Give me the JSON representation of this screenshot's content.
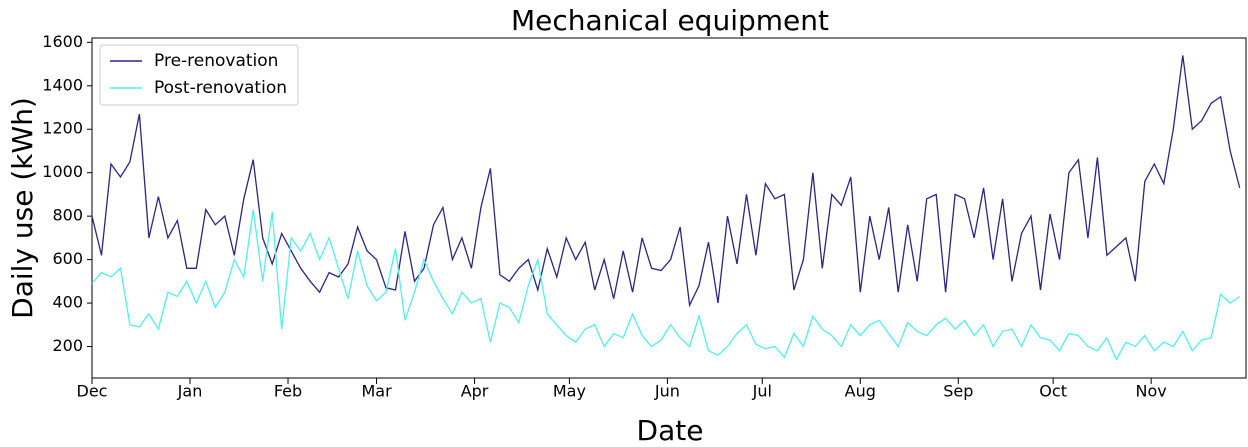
{
  "chart_data": {
    "type": "line",
    "title": "Mechanical equipment",
    "x_label": "Date",
    "y_label": "Daily use (kWh)",
    "x": [
      0,
      3,
      6,
      9,
      12,
      15,
      18,
      21,
      24,
      27,
      30,
      33,
      36,
      39,
      42,
      45,
      48,
      51,
      54,
      57,
      60,
      63,
      66,
      69,
      72,
      75,
      78,
      81,
      84,
      87,
      90,
      93,
      96,
      99,
      102,
      105,
      108,
      111,
      114,
      117,
      120,
      123,
      126,
      129,
      132,
      135,
      138,
      141,
      144,
      147,
      150,
      153,
      156,
      159,
      162,
      165,
      168,
      171,
      174,
      177,
      180,
      183,
      186,
      189,
      192,
      195,
      198,
      201,
      204,
      207,
      210,
      213,
      216,
      219,
      222,
      225,
      228,
      231,
      234,
      237,
      240,
      243,
      246,
      249,
      252,
      255,
      258,
      261,
      264,
      267,
      270,
      273,
      276,
      279,
      282,
      285,
      288,
      291,
      294,
      297,
      300,
      303,
      306,
      309,
      312,
      315,
      318,
      321,
      324,
      327,
      330,
      333,
      336,
      339,
      342,
      345,
      348,
      351,
      354,
      357,
      360,
      363
    ],
    "xlim": [
      0,
      365
    ],
    "xticks": [
      {
        "value": 0,
        "label": "Dec"
      },
      {
        "value": 31,
        "label": "Jan"
      },
      {
        "value": 62,
        "label": "Feb"
      },
      {
        "value": 90,
        "label": "Mar"
      },
      {
        "value": 121,
        "label": "Apr"
      },
      {
        "value": 151,
        "label": "May"
      },
      {
        "value": 182,
        "label": "Jun"
      },
      {
        "value": 212,
        "label": "Jul"
      },
      {
        "value": 243,
        "label": "Aug"
      },
      {
        "value": 274,
        "label": "Sep"
      },
      {
        "value": 304,
        "label": "Oct"
      },
      {
        "value": 335,
        "label": "Nov"
      }
    ],
    "ylim": [
      55,
      1620
    ],
    "yticks": [
      200,
      400,
      600,
      800,
      1000,
      1200,
      1400,
      1600
    ],
    "legend": "upper left",
    "series": [
      {
        "name": "Pre-renovation",
        "color": "#2b2585",
        "values": [
          800,
          620,
          1040,
          980,
          1050,
          1270,
          700,
          890,
          700,
          780,
          560,
          560,
          830,
          760,
          800,
          620,
          880,
          1060,
          700,
          580,
          720,
          640,
          560,
          500,
          450,
          540,
          520,
          580,
          750,
          640,
          600,
          470,
          460,
          730,
          500,
          560,
          760,
          840,
          600,
          700,
          560,
          840,
          1020,
          530,
          500,
          560,
          600,
          460,
          650,
          520,
          700,
          600,
          680,
          460,
          600,
          420,
          640,
          450,
          700,
          560,
          550,
          600,
          750,
          390,
          480,
          680,
          400,
          800,
          580,
          900,
          620,
          950,
          880,
          900,
          460,
          600,
          1000,
          560,
          900,
          850,
          980,
          450,
          800,
          600,
          840,
          450,
          760,
          500,
          880,
          900,
          450,
          900,
          880,
          700,
          930,
          600,
          880,
          500,
          720,
          800,
          460,
          810,
          600,
          1000,
          1060,
          700,
          1070,
          620,
          660,
          700,
          500,
          960,
          1040,
          950,
          1200,
          1540,
          1200,
          1240,
          1320,
          1350,
          1100,
          930
        ]
      },
      {
        "name": "Post-renovation",
        "color": "#4ff0ee",
        "values": [
          490,
          540,
          520,
          560,
          300,
          290,
          350,
          280,
          450,
          430,
          500,
          400,
          500,
          380,
          450,
          600,
          520,
          830,
          500,
          820,
          280,
          700,
          640,
          720,
          600,
          700,
          560,
          420,
          640,
          480,
          410,
          450,
          650,
          320,
          450,
          600,
          500,
          420,
          350,
          450,
          400,
          420,
          220,
          400,
          380,
          310,
          480,
          600,
          350,
          300,
          250,
          220,
          280,
          300,
          200,
          260,
          240,
          350,
          250,
          200,
          230,
          300,
          240,
          200,
          340,
          180,
          160,
          200,
          260,
          300,
          210,
          190,
          200,
          150,
          260,
          200,
          340,
          280,
          250,
          200,
          300,
          250,
          300,
          320,
          260,
          200,
          310,
          270,
          250,
          300,
          330,
          280,
          320,
          250,
          300,
          200,
          270,
          280,
          200,
          300,
          240,
          230,
          180,
          260,
          250,
          200,
          180,
          240,
          140,
          220,
          200,
          250,
          180,
          220,
          200,
          270,
          180,
          230,
          240,
          440,
          400,
          430
        ]
      }
    ]
  }
}
